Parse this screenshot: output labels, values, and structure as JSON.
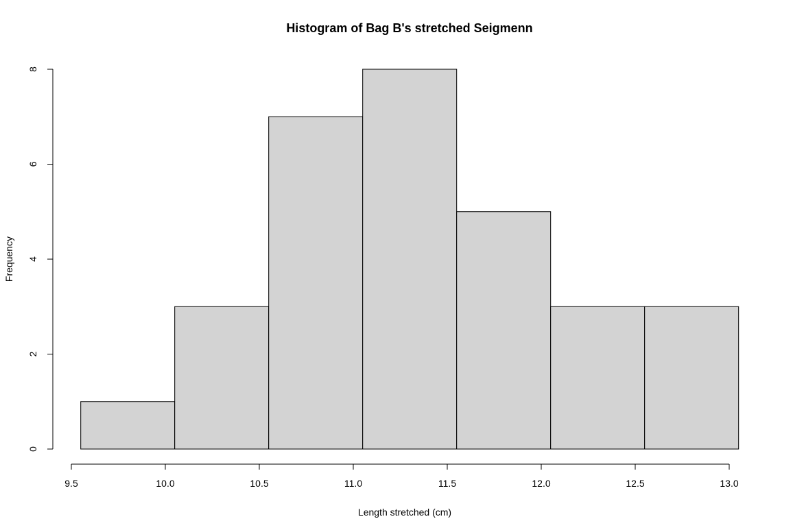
{
  "chart_data": {
    "type": "bar",
    "title": "Histogram of Bag B's stretched Seigmenn",
    "xlabel": "Length stretched (cm)",
    "ylabel": "Frequency",
    "bins": [
      {
        "start": 9.55,
        "end": 10.05,
        "count": 1
      },
      {
        "start": 10.05,
        "end": 10.55,
        "count": 3
      },
      {
        "start": 10.55,
        "end": 11.05,
        "count": 7
      },
      {
        "start": 11.05,
        "end": 11.55,
        "count": 8
      },
      {
        "start": 11.55,
        "end": 12.05,
        "count": 5
      },
      {
        "start": 12.05,
        "end": 12.55,
        "count": 3
      },
      {
        "start": 12.55,
        "end": 13.05,
        "count": 3
      }
    ],
    "xticks": [
      "9.5",
      "10.0",
      "10.5",
      "11.0",
      "11.5",
      "12.0",
      "12.5",
      "13.0"
    ],
    "yticks": [
      "0",
      "2",
      "4",
      "6",
      "8"
    ],
    "xlim": [
      9.5,
      13.0
    ],
    "ylim": [
      0,
      8
    ],
    "grid": false,
    "bar_color": "#d3d3d3"
  }
}
